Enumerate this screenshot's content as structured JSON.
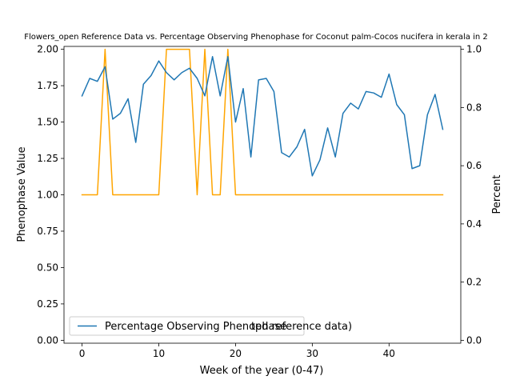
{
  "chart_data": {
    "type": "line",
    "title": "Flowers_open Reference Data vs. Percentage Observing Phenophase for Coconut palm-Cocos nucifera in kerala in 2",
    "xlabel": "Week of the year (0-47)",
    "ylabel_left": "Phenophase Value",
    "ylabel_right": "Percent",
    "xlim": [
      -2.35,
      49.35
    ],
    "ylim_left": [
      -0.02,
      2.02
    ],
    "ylim_right": [
      -0.01,
      1.01
    ],
    "x_ticks": [
      0,
      10,
      20,
      30,
      40
    ],
    "y_ticks_left": [
      "0.00",
      "0.25",
      "0.50",
      "0.75",
      "1.00",
      "1.25",
      "1.50",
      "1.75",
      "2.00"
    ],
    "y_ticks_right": [
      "0.0",
      "0.2",
      "0.4",
      "0.6",
      "0.8",
      "1.0"
    ],
    "grid": false,
    "legend_placement": "lower-left",
    "legend_text": "Percentage Observing Phenophase",
    "legend_overlap_text": "ted reference data)",
    "series": [
      {
        "name": "Percentage Observing Phenophase",
        "axis": "right",
        "color": "#1f77b4",
        "x": [
          0,
          1,
          2,
          3,
          4,
          5,
          6,
          7,
          8,
          9,
          10,
          11,
          12,
          13,
          14,
          15,
          16,
          17,
          18,
          19,
          20,
          21,
          22,
          23,
          24,
          25,
          26,
          27,
          28,
          29,
          30,
          31,
          32,
          33,
          34,
          35,
          36,
          37,
          38,
          39,
          40,
          41,
          42,
          43,
          44,
          45,
          46,
          47
        ],
        "y": [
          0.84,
          0.9,
          0.89,
          0.94,
          0.76,
          0.78,
          0.83,
          0.68,
          0.88,
          0.91,
          0.96,
          0.92,
          0.895,
          0.92,
          0.935,
          0.9,
          0.84,
          0.975,
          0.84,
          0.975,
          0.75,
          0.865,
          0.63,
          0.895,
          0.9,
          0.855,
          0.645,
          0.63,
          0.665,
          0.725,
          0.565,
          0.62,
          0.73,
          0.63,
          0.78,
          0.815,
          0.795,
          0.855,
          0.85,
          0.835,
          0.915,
          0.81,
          0.775,
          0.59,
          0.6,
          0.775,
          0.845,
          0.725
        ]
      },
      {
        "name": "",
        "axis": "left",
        "color": "#ffa500",
        "x": [
          0,
          1,
          2,
          3,
          4,
          5,
          6,
          7,
          8,
          9,
          10,
          11,
          12,
          13,
          14,
          15,
          16,
          17,
          18,
          19,
          20,
          21,
          22,
          23,
          24,
          25,
          26,
          27,
          28,
          29,
          30,
          31,
          32,
          33,
          34,
          35,
          36,
          37,
          38,
          39,
          40,
          41,
          42,
          43,
          44,
          45,
          46,
          47
        ],
        "y": [
          1,
          1,
          1,
          2,
          1,
          1,
          1,
          1,
          1,
          1,
          1,
          2,
          2,
          2,
          2,
          1,
          2,
          1,
          1,
          2,
          1,
          1,
          1,
          1,
          1,
          1,
          1,
          1,
          1,
          1,
          1,
          1,
          1,
          1,
          1,
          1,
          1,
          1,
          1,
          1,
          1,
          1,
          1,
          1,
          1,
          1,
          1,
          1
        ]
      }
    ]
  }
}
